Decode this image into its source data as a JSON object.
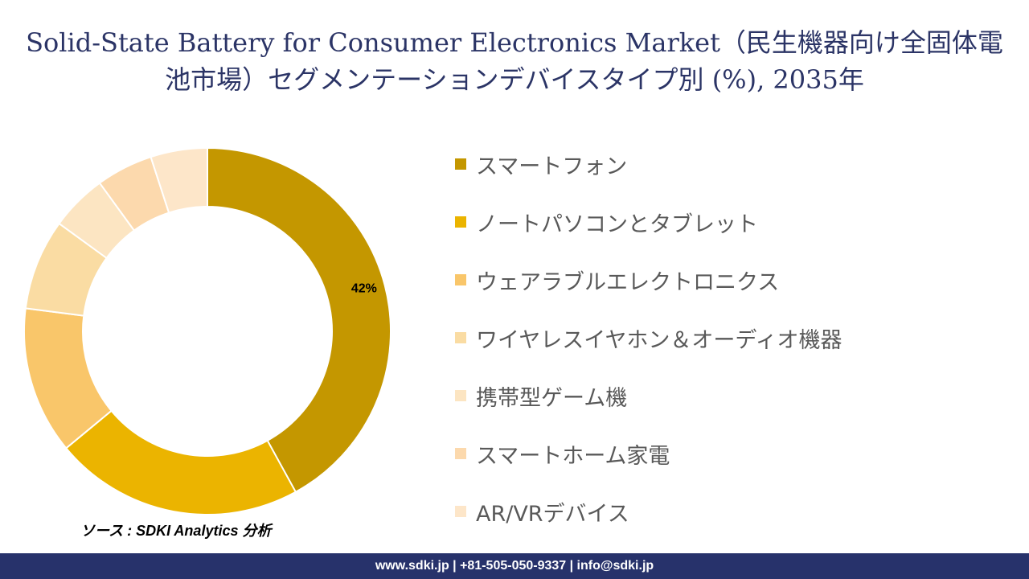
{
  "title": "Solid-State Battery for Consumer Electronics Market（民生機器向け全固体電池市場）セグメンテーションデバイスタイプ別 (%), 2035年",
  "source": "ソース : SDKI Analytics 分析",
  "footer": "www.sdki.jp | +81-505-050-9337 | info@sdki.jp",
  "chart_data": {
    "type": "pie",
    "style": "donut",
    "title": "Solid-State Battery for Consumer Electronics Market（民生機器向け全固体電池市場）セグメンテーションデバイスタイプ別 (%), 2035年",
    "categories": [
      "スマートフォン",
      "ノートパソコンとタブレット",
      "ウェアラブルエレクトロニクス",
      "ワイヤレスイヤホン＆オーディオ機器",
      "携帯型ゲーム機",
      "スマートホーム家電",
      "AR/VRデバイス"
    ],
    "values": [
      42,
      22,
      13,
      8,
      5,
      5,
      5
    ],
    "data_labels": [
      "42%",
      "",
      "",
      "",
      "",
      "",
      ""
    ],
    "colors": [
      "#c49700",
      "#ebb400",
      "#f9c66a",
      "#fadca3",
      "#fce5c2",
      "#fcd9ad",
      "#fde6c9"
    ],
    "legend_position": "right"
  }
}
